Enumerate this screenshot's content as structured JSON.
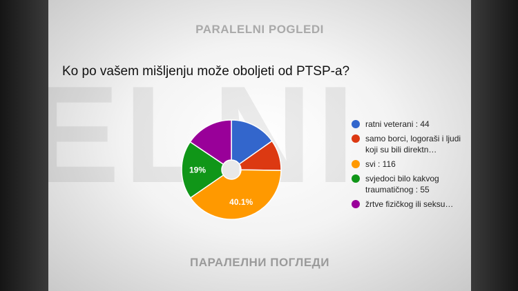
{
  "branding": {
    "watermark": "ELNI",
    "top_label": "PARALELNI POGLEDI",
    "bottom_label": "ПАРАЛЕЛНИ ПОГЛЕДИ"
  },
  "chart_data": {
    "type": "pie",
    "donut": true,
    "title": "Ko po vašem mišljenju može oboljeti od PTSP-a?",
    "legend_position": "right",
    "series": [
      {
        "name": "ratni veterani : 44",
        "value": 44,
        "color": "#3366cc"
      },
      {
        "name": "samo borci, logoraši i ljudi koji su bili direktn…",
        "value": 29,
        "color": "#dc3912"
      },
      {
        "name": "svi : 116",
        "value": 116,
        "color": "#ff9900",
        "label": "40.1%"
      },
      {
        "name": "svjedoci bilo kakvog traumatičnog : 55",
        "value": 55,
        "color": "#109618",
        "label": "19%"
      },
      {
        "name": "žrtve fizičkog ili seksu…",
        "value": 45,
        "color": "#990099"
      }
    ]
  }
}
